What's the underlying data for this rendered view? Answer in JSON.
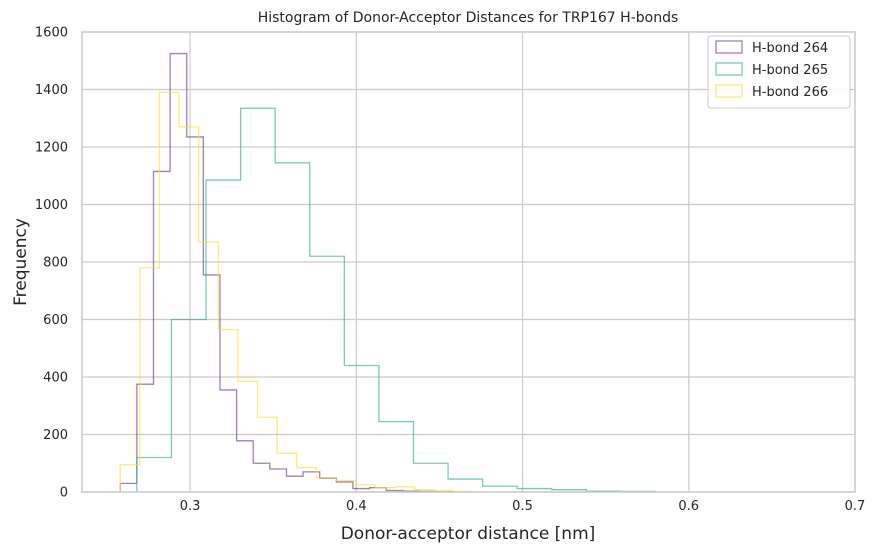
{
  "chart_data": {
    "type": "histogram",
    "title": "Histogram of Donor-Acceptor Distances for TRP167 H-bonds",
    "xlabel": "Donor-acceptor distance [nm]",
    "ylabel": "Frequency",
    "xlim": [
      0.235,
      0.7
    ],
    "ylim": [
      0,
      1600
    ],
    "xticks": [
      0.3,
      0.4,
      0.5,
      0.6,
      0.7
    ],
    "xtick_labels": [
      "0.3",
      "0.4",
      "0.5",
      "0.6",
      "0.7"
    ],
    "yticks": [
      0,
      200,
      400,
      600,
      800,
      1000,
      1200,
      1400,
      1600
    ],
    "ytick_labels": [
      "0",
      "200",
      "400",
      "600",
      "800",
      "1000",
      "1200",
      "1400",
      "1600"
    ],
    "grid": true,
    "legend_position": "top-right",
    "series": [
      {
        "name": "H-bond 264",
        "color": "#6a3d8f",
        "bin_edges": [
          0.258,
          0.268,
          0.278,
          0.288,
          0.298,
          0.308,
          0.318,
          0.328,
          0.338,
          0.348,
          0.358,
          0.368,
          0.378,
          0.388,
          0.398,
          0.408,
          0.418,
          0.428,
          0.438,
          0.448,
          0.458
        ],
        "counts": [
          30,
          375,
          1115,
          1525,
          1235,
          755,
          355,
          178,
          100,
          80,
          55,
          70,
          48,
          35,
          12,
          15,
          5,
          3,
          2,
          1
        ]
      },
      {
        "name": "H-bond 265",
        "color": "#3aa99a",
        "bin_edges": [
          0.268,
          0.2888,
          0.3096,
          0.3304,
          0.3512,
          0.372,
          0.3928,
          0.4136,
          0.4344,
          0.4552,
          0.476,
          0.4968,
          0.5176,
          0.5384,
          0.5592,
          0.58
        ],
        "counts": [
          120,
          600,
          1085,
          1335,
          1145,
          820,
          440,
          245,
          100,
          45,
          20,
          12,
          8,
          3,
          2
        ]
      },
      {
        "name": "H-bond 266",
        "color": "#ffe033",
        "bin_edges": [
          0.258,
          0.2698,
          0.2816,
          0.2934,
          0.3052,
          0.317,
          0.3288,
          0.3406,
          0.3524,
          0.3642,
          0.376,
          0.3878,
          0.3996,
          0.4114,
          0.4232,
          0.435,
          0.4468,
          0.4586,
          0.4704
        ],
        "counts": [
          95,
          780,
          1390,
          1270,
          870,
          565,
          385,
          260,
          135,
          85,
          50,
          40,
          25,
          15,
          18,
          8,
          5,
          2
        ]
      }
    ]
  }
}
